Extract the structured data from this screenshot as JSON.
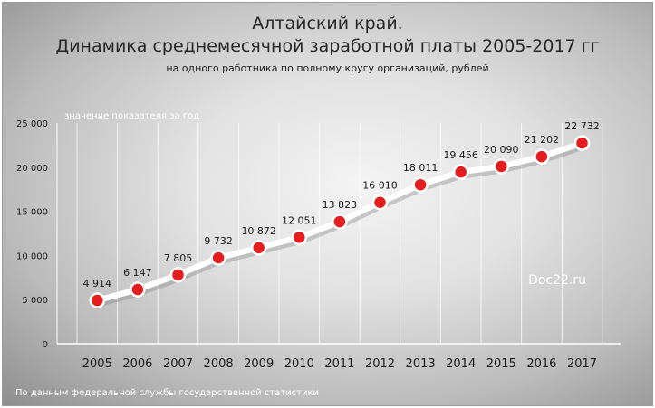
{
  "title_line1": "Алтайский край.",
  "title_line2": "Динамика среднемесячной  заработной платы 2005-2017 гг",
  "subtitle": "на одного работника по полному кругу организаций,  рублей",
  "note": "значение показателя за год",
  "watermark": "Doc22.ru",
  "source": "По данным федеральной службы государственной статистики",
  "chart_data": {
    "type": "line",
    "categories": [
      "2005",
      "2006",
      "2007",
      "2008",
      "2009",
      "2010",
      "2011",
      "2012",
      "2013",
      "2014",
      "2015",
      "2016",
      "2017"
    ],
    "values": [
      4914,
      6147,
      7805,
      9732,
      10872,
      12051,
      13823,
      16010,
      18011,
      19456,
      20090,
      21202,
      22732
    ],
    "value_labels": [
      "4 914",
      "6 147",
      "7 805",
      "9 732",
      "10 872",
      "12 051",
      "13 823",
      "16 010",
      "18 011",
      "19 456",
      "20 090",
      "21 202",
      "22 732"
    ],
    "ylim": [
      0,
      25000
    ],
    "yticks": [
      0,
      5000,
      10000,
      15000,
      20000,
      25000
    ],
    "ytick_labels": [
      "0",
      "5 000",
      "10 000",
      "15 000",
      "20 000",
      "25 000"
    ],
    "grid": "vertical",
    "line_color": "#ffffff",
    "marker_color": "#e41e1e",
    "xlabel": "",
    "ylabel": ""
  }
}
